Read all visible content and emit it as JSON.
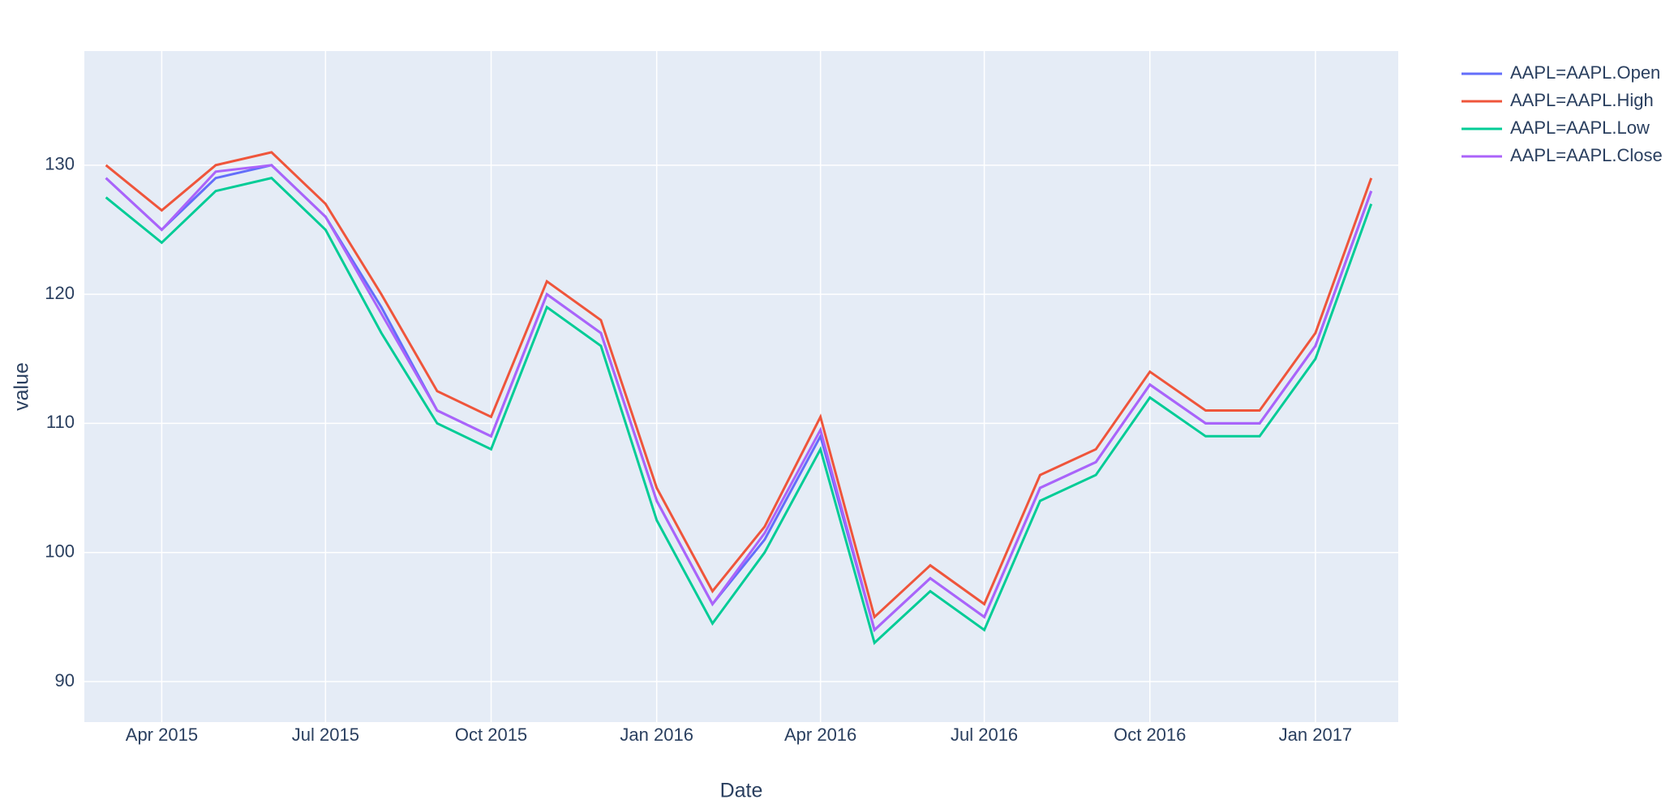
{
  "chart_data": {
    "type": "line",
    "x_title": "Date",
    "y_title": "value",
    "x": [
      "2015-03",
      "2015-04",
      "2015-05",
      "2015-06",
      "2015-07",
      "2015-08",
      "2015-09",
      "2015-10",
      "2015-11",
      "2015-12",
      "2016-01",
      "2016-02",
      "2016-03",
      "2016-04",
      "2016-05",
      "2016-06",
      "2016-07",
      "2016-08",
      "2016-09",
      "2016-10",
      "2016-11",
      "2016-12",
      "2017-01",
      "2017-02"
    ],
    "series": [
      {
        "name": "AAPL=AAPL.Open",
        "color": "#636efa",
        "values": [
          129,
          125,
          129,
          130,
          126,
          119,
          111,
          109,
          120,
          117,
          104,
          96,
          101,
          109,
          94,
          98,
          95,
          105,
          107,
          113,
          110,
          110,
          116,
          128
        ]
      },
      {
        "name": "AAPL=AAPL.High",
        "color": "#EF553B",
        "values": [
          130,
          126.5,
          130,
          131,
          127,
          120,
          112.5,
          110.5,
          121,
          118,
          105,
          97,
          102,
          110.5,
          95,
          99,
          96,
          106,
          108,
          114,
          111,
          111,
          117,
          129
        ]
      },
      {
        "name": "AAPL=AAPL.Low",
        "color": "#00cc96",
        "values": [
          127.5,
          124,
          128,
          129,
          125,
          117,
          110,
          108,
          119,
          116,
          102.5,
          94.5,
          100,
          108,
          93,
          97,
          94,
          104,
          106,
          112,
          109,
          109,
          115,
          127
        ]
      },
      {
        "name": "AAPL=AAPL.Close",
        "color": "#ab63fa",
        "values": [
          129,
          125,
          129.5,
          130,
          126,
          118.5,
          111,
          109,
          120,
          117,
          104,
          96,
          101.5,
          109.5,
          94,
          98,
          95,
          105,
          107,
          113,
          110,
          110,
          116,
          128
        ]
      }
    ],
    "xlim": [
      "2015-02-17",
      "2017-02-16"
    ],
    "xticks": [
      {
        "value": "2015-04",
        "label": "Apr 2015"
      },
      {
        "value": "2015-07",
        "label": "Jul 2015"
      },
      {
        "value": "2015-10",
        "label": "Oct 2015"
      },
      {
        "value": "2016-01",
        "label": "Jan 2016"
      },
      {
        "value": "2016-04",
        "label": "Apr 2016"
      },
      {
        "value": "2016-07",
        "label": "Jul 2016"
      },
      {
        "value": "2016-10",
        "label": "Oct 2016"
      },
      {
        "value": "2017-01",
        "label": "Jan 2017"
      }
    ],
    "ylim": [
      86.86,
      138.84
    ],
    "yticks": [
      90,
      100,
      110,
      120,
      130
    ],
    "grid": true,
    "legend": "right"
  }
}
